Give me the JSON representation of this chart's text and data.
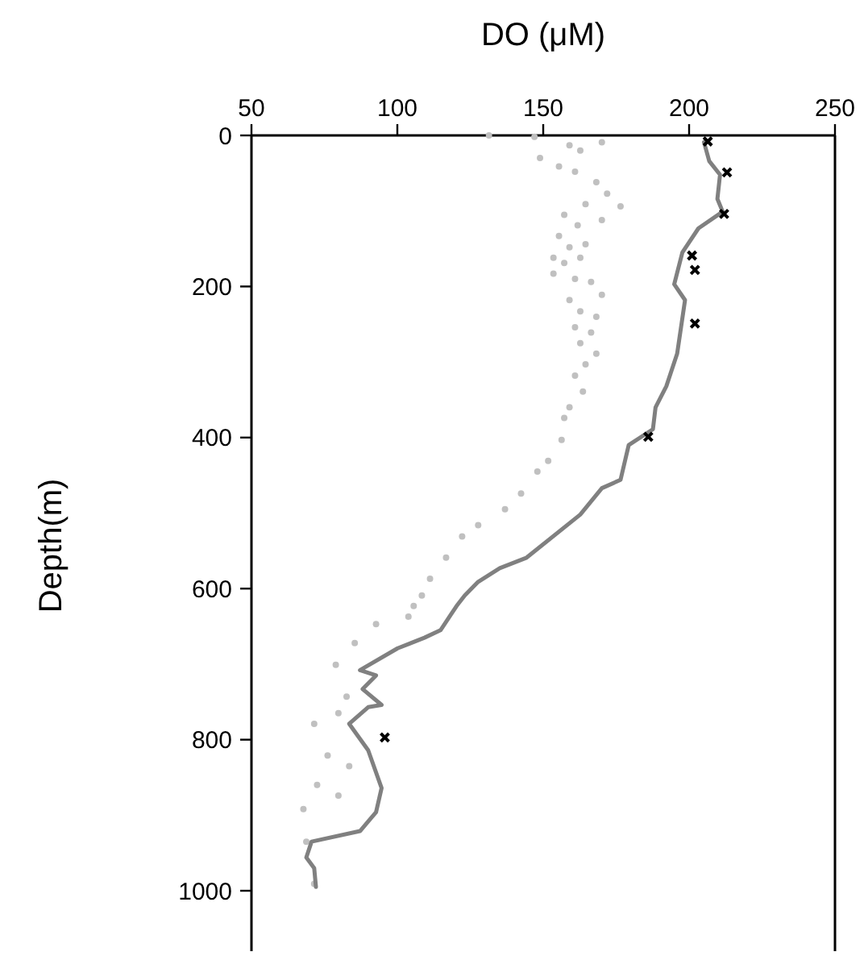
{
  "chart_data": {
    "type": "scatter",
    "xlabel": "DO (μM)",
    "ylabel": "Depth(m)",
    "xlim": [
      50,
      250
    ],
    "xticks": [
      50,
      100,
      150,
      200,
      250
    ],
    "ylim": [
      1080,
      0
    ],
    "yticks": [
      0,
      200,
      400,
      600,
      800,
      1000
    ],
    "grid": false,
    "series": [
      {
        "marker": "circle",
        "color": "#c0c0c0",
        "x": [
          131.4,
          147,
          148.9,
          159.0,
          162.7,
          170.1,
          155.4,
          160.9,
          168.2,
          171.9,
          176.5,
          164.5,
          157.2,
          170.1,
          161.8,
          155.4,
          159.0,
          164.5,
          153.5,
          157.2,
          162.7,
          153.5,
          160.9,
          166.4,
          170.1,
          159.0,
          162.7,
          168.2,
          160.9,
          166.4,
          162.7,
          168.2,
          164.5,
          160.9,
          163.6,
          159.0,
          157.2,
          156.3,
          151.7,
          148,
          142.4,
          136.9,
          127.7,
          122.2,
          116.7,
          111.2,
          105.6,
          108.4,
          103.8,
          92.7,
          85.4,
          78.9,
          82.6,
          79.8,
          71.5,
          76.1,
          83.5,
          72.5,
          79.8,
          67.8,
          68.8,
          71.5
        ],
        "values": [
          0,
          2,
          30,
          13,
          20,
          9,
          41,
          48,
          62,
          77,
          94,
          91,
          105,
          112,
          119,
          133,
          148,
          144,
          162,
          169,
          162,
          183,
          190,
          194,
          211,
          218,
          233,
          240,
          254,
          261,
          275,
          289,
          303,
          318,
          339,
          360,
          374,
          403,
          431,
          445,
          474,
          495,
          516,
          531,
          559,
          587,
          623,
          609,
          637,
          647,
          672,
          701,
          743,
          765,
          779,
          821,
          835,
          860,
          874,
          892,
          935,
          991
        ]
      },
      {
        "type": "line",
        "marker": "none",
        "color": "#808080",
        "x": [
          205.1,
          206.9,
          210.6,
          209.7,
          211.5,
          203.2,
          197.7,
          194.9,
          198.6,
          195.9,
          192.2,
          188.5,
          187.6,
          179.3,
          176.5,
          170.1,
          162.7,
          144.3,
          135.1,
          127.7,
          123.1,
          120.3,
          114.8,
          109.3,
          100.1,
          87.2,
          92.7,
          88.1,
          94.6,
          90,
          83.5,
          90,
          94.6,
          92.7,
          87.2,
          70.6,
          68.8,
          71.5,
          72.1
        ],
        "values": [
          9,
          34,
          52,
          84,
          101,
          123,
          155,
          197,
          218,
          289,
          332,
          360,
          389,
          410,
          456,
          467,
          502,
          559,
          573,
          591,
          609,
          623,
          655,
          665,
          679,
          708,
          715,
          733,
          754,
          757,
          779,
          814,
          864,
          896,
          921,
          935,
          956,
          970,
          995
        ]
      },
      {
        "marker": "cross",
        "color": "#000000",
        "x": [
          206.4,
          213,
          212,
          201,
          202,
          202,
          186,
          95.7
        ],
        "values": [
          8,
          49,
          104,
          159,
          178,
          249,
          399,
          797
        ]
      }
    ]
  }
}
